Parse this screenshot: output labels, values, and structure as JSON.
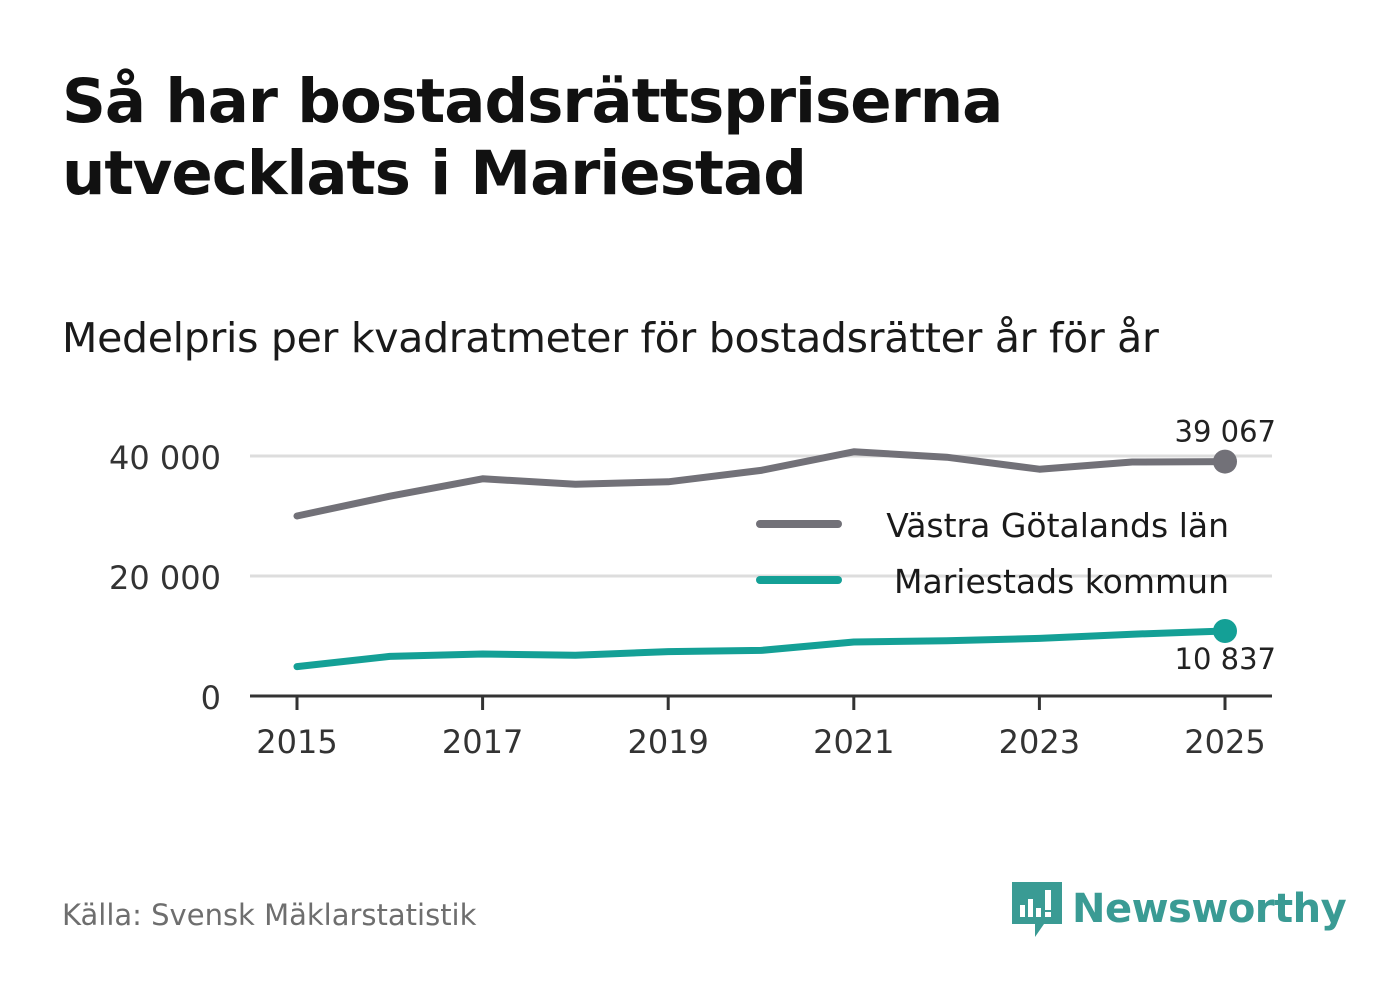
{
  "title": "Så har bostadsrättspriserna utvecklats i Mariestad",
  "subtitle": "Medelpris per kvadratmeter för bostadsrätter år för år",
  "source": "Källa: Svensk Mäklarstatistik",
  "brand": {
    "name": "Newsworthy",
    "color": "#3a9b94",
    "icon": "newsworthy-logo-icon"
  },
  "chart_data": {
    "type": "line",
    "x": [
      2015,
      2016,
      2017,
      2018,
      2019,
      2020,
      2021,
      2022,
      2023,
      2024,
      2025
    ],
    "xticks": [
      2015,
      2017,
      2019,
      2021,
      2023,
      2025
    ],
    "xtick_labels": [
      "2015",
      "2017",
      "2019",
      "2021",
      "2023",
      "2025"
    ],
    "xlim": [
      2015,
      2025
    ],
    "yticks": [
      0,
      20000,
      40000
    ],
    "ytick_labels": [
      "0",
      "20 000",
      "40 000"
    ],
    "ylim": [
      0,
      40000
    ],
    "grid": true,
    "legend_position": "right",
    "series": [
      {
        "name": "Västra Götalands län",
        "color": "#727178",
        "values": [
          30000,
          33300,
          36200,
          35300,
          35700,
          37600,
          40700,
          39800,
          37800,
          39000,
          39067
        ],
        "end_label": "39 067"
      },
      {
        "name": "Mariestads kommun",
        "color": "#14a096",
        "values": [
          4900,
          6600,
          7000,
          6800,
          7400,
          7600,
          9000,
          9200,
          9600,
          10300,
          10837
        ],
        "end_label": "10 837"
      }
    ]
  }
}
